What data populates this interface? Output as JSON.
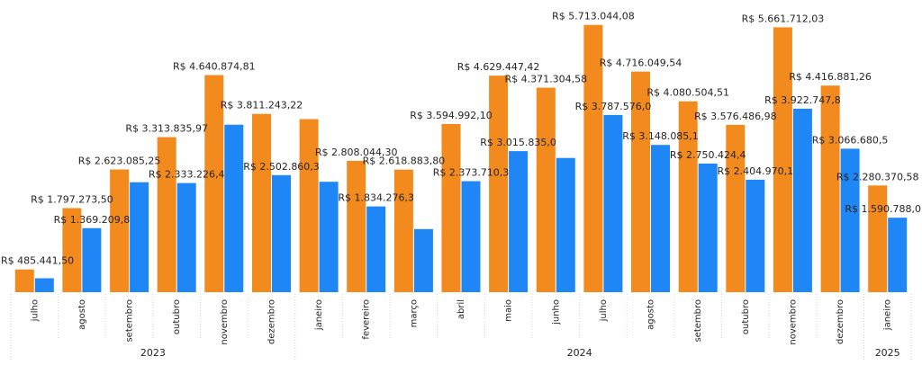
{
  "chart_data": {
    "type": "bar",
    "categories": [
      "julho",
      "agosto",
      "setembro",
      "outubro",
      "novembro",
      "dezembro",
      "janeiro",
      "fevereiro",
      "março",
      "abril",
      "maio",
      "junho",
      "julho",
      "agosto",
      "setembro",
      "outubro",
      "novembro",
      "dezembro",
      "janeiro"
    ],
    "year_groups": [
      {
        "label": "2023",
        "count": 6
      },
      {
        "label": "2024",
        "count": 12
      },
      {
        "label": "2025",
        "count": 1
      }
    ],
    "series": [
      {
        "color": "#F28A1E",
        "values": [
          485441.5,
          1797273.5,
          2623085.25,
          3313835.97,
          4640874.81,
          3811243.22,
          3700000,
          2808044.3,
          2618883.8,
          3594992.1,
          4629447.42,
          4371304.58,
          5713044.08,
          4716049.54,
          4080504.51,
          3576486.98,
          5661712.03,
          4416881.26,
          2280370.58
        ],
        "labels": [
          "R$ 485.441,50",
          "R$ 1.797.273,50",
          "R$ 2.623.085,25",
          "R$ 3.313.835,97",
          "R$ 4.640.874,81",
          "R$ 3.811.243,22",
          "",
          "R$ 2.808.044,30",
          "R$ 2.618.883,80",
          "R$ 3.594.992,10",
          "R$ 4.629.447,42",
          "R$ 4.371.304,58",
          "R$ 5.713.044,08",
          "R$ 4.716.049,54",
          "R$ 4.080.504,51",
          "R$ 3.576.486,98",
          "R$ 5.661.712,03",
          "R$ 4.416.881,26",
          "R$ 2.280.370,58"
        ]
      },
      {
        "color": "#1F87F5",
        "values": [
          298000,
          1369209.8,
          2350000,
          2333226.4,
          3580000,
          2502860.3,
          2360000,
          1834276.3,
          1350000,
          2373710.3,
          3015835.0,
          2870000,
          3787576.0,
          3148085.1,
          2750424.4,
          2404970.1,
          3922747.8,
          3066680.5,
          1590788.0
        ],
        "labels": [
          "",
          "R$ 1.369.209,8",
          "",
          "R$ 2.333.226,4",
          "",
          "R$ 2.502.860,3",
          "",
          "R$ 1.834.276,3",
          "",
          "R$ 2.373.710,3",
          "R$ 3.015.835,0",
          "",
          "R$ 3.787.576,0",
          "R$ 3.148.085,1",
          "R$ 2.750.424,4",
          "R$ 2.404.970,1",
          "R$ 3.922.747,8",
          "R$ 3.066.680,5",
          "R$ 1.590.788,0"
        ]
      }
    ],
    "ylim": [
      0,
      5900000
    ]
  }
}
